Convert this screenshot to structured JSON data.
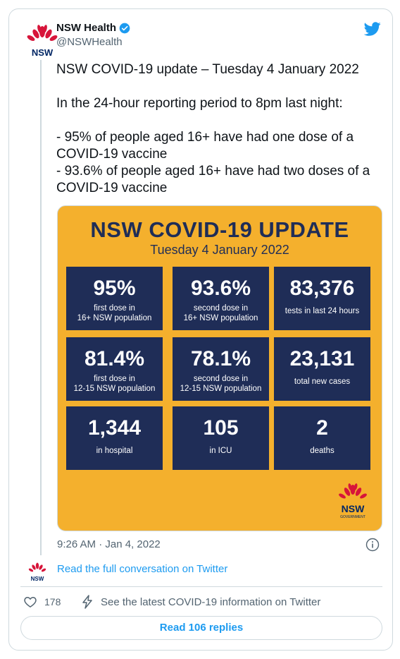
{
  "account": {
    "name": "NSW Health",
    "handle": "@NSWHealth",
    "logo_text": "NSW"
  },
  "tweet": {
    "line1": "NSW COVID-19 update – Tuesday 4 January 2022",
    "line2": "In the 24-hour reporting period to 8pm last night:",
    "line3": "- 95% of people aged 16+ have had one dose of a COVID-19 vaccine",
    "line4": "- 93.6% of people aged 16+ have had two doses of a COVID-19 vaccine"
  },
  "infographic": {
    "title": "NSW COVID-19 UPDATE",
    "date": "Tuesday 4 January 2022",
    "tiles": [
      {
        "value": "95%",
        "label1": "first dose in",
        "label2": "16+ NSW population"
      },
      {
        "value": "93.6%",
        "label1": "second dose in",
        "label2": "16+ NSW population"
      },
      {
        "value": "83,376",
        "label1": "tests in last 24 hours",
        "label2": ""
      },
      {
        "value": "81.4%",
        "label1": "first dose in",
        "label2": "12-15 NSW population"
      },
      {
        "value": "78.1%",
        "label1": "second dose in",
        "label2": "12-15 NSW population"
      },
      {
        "value": "23,131",
        "label1": "total new cases",
        "label2": ""
      },
      {
        "value": "1,344",
        "label1": "in hospital",
        "label2": ""
      },
      {
        "value": "105",
        "label1": "in ICU",
        "label2": ""
      },
      {
        "value": "2",
        "label1": "deaths",
        "label2": ""
      }
    ],
    "logo_text": "NSW",
    "logo_sub": "GOVERNMENT"
  },
  "meta": {
    "timestamp": "9:26 AM · Jan 4, 2022",
    "read_conversation": "Read the full conversation on Twitter",
    "likes": "178",
    "latest_info": "See the latest COVID-19 information on Twitter",
    "read_replies": "Read 106 replies"
  },
  "colors": {
    "twitter_blue": "#1d9bf0",
    "navy": "#1f2d57",
    "orange": "#f4b02d",
    "waratah_red": "#d7153a"
  }
}
